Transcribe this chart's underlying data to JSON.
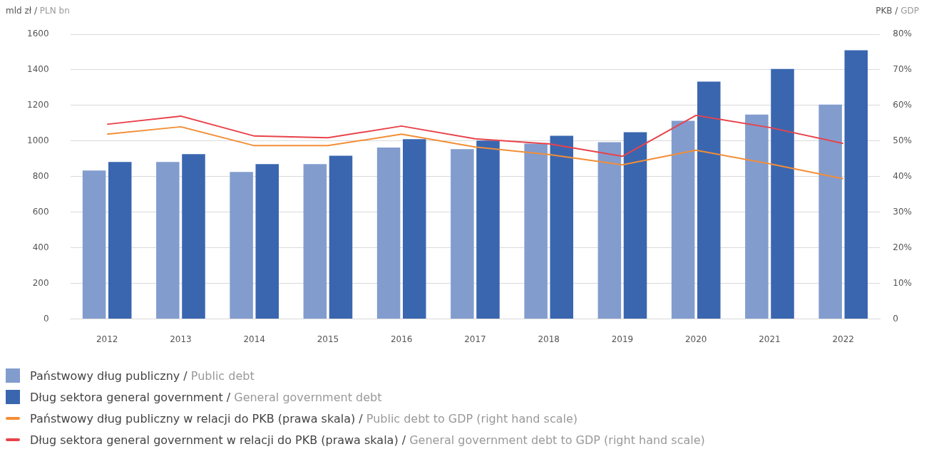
{
  "chart_data": {
    "type": "bar",
    "ylabel": "mld zł / PLN bn",
    "y2label": "PKB / GDP",
    "categories": [
      "2012",
      "2013",
      "2014",
      "2015",
      "2016",
      "2017",
      "2018",
      "2019",
      "2020",
      "2021",
      "2022"
    ],
    "series": [
      {
        "name": "Państwowy dług publiczny / Public debt",
        "color": "#829cce",
        "values": [
          834,
          882,
          826,
          870,
          963,
          954,
          985,
          993,
          1114,
          1149,
          1205
        ]
      },
      {
        "name": "Dług sektora general government / General government debt",
        "color": "#3a66b0",
        "values": [
          882,
          926,
          870,
          917,
          1010,
          1002,
          1029,
          1049,
          1334,
          1405,
          1510
        ]
      },
      {
        "name": "Państwowy dług publiczny w relacji do PKB (prawa skala) / Public debt to GDP (right hand scale)",
        "type": "line",
        "axis": "y2",
        "color": "#f28e36",
        "values": [
          51.9,
          54.0,
          48.7,
          48.7,
          51.9,
          48.3,
          46.2,
          43.3,
          47.4,
          43.6,
          39.4
        ]
      },
      {
        "name": "Dług sektora general government w relacji do PKB (prawa skala) / General government debt to GDP (right hand scale)",
        "type": "line",
        "axis": "y2",
        "color": "#e8434a",
        "values": [
          54.7,
          57.0,
          51.4,
          50.9,
          54.2,
          50.6,
          49.2,
          45.7,
          57.2,
          53.8,
          49.3
        ]
      }
    ],
    "ylim": [
      0,
      1600
    ],
    "yticks": [
      0,
      200,
      400,
      600,
      800,
      1000,
      1200,
      1400,
      1600
    ],
    "y2lim": [
      0,
      80
    ],
    "y2ticks": [
      0,
      {
        "value": 10,
        "label": "10%"
      },
      {
        "value": 20,
        "label": "20%"
      },
      {
        "value": 30,
        "label": "30%"
      },
      {
        "value": 40,
        "label": "40%"
      },
      {
        "value": 50,
        "label": "50%"
      },
      {
        "value": 60,
        "label": "60%"
      },
      {
        "value": 70,
        "label": "70%"
      },
      {
        "value": 80,
        "label": "80%"
      }
    ],
    "grid": "y",
    "legend": "bottom",
    "marker": "none"
  }
}
